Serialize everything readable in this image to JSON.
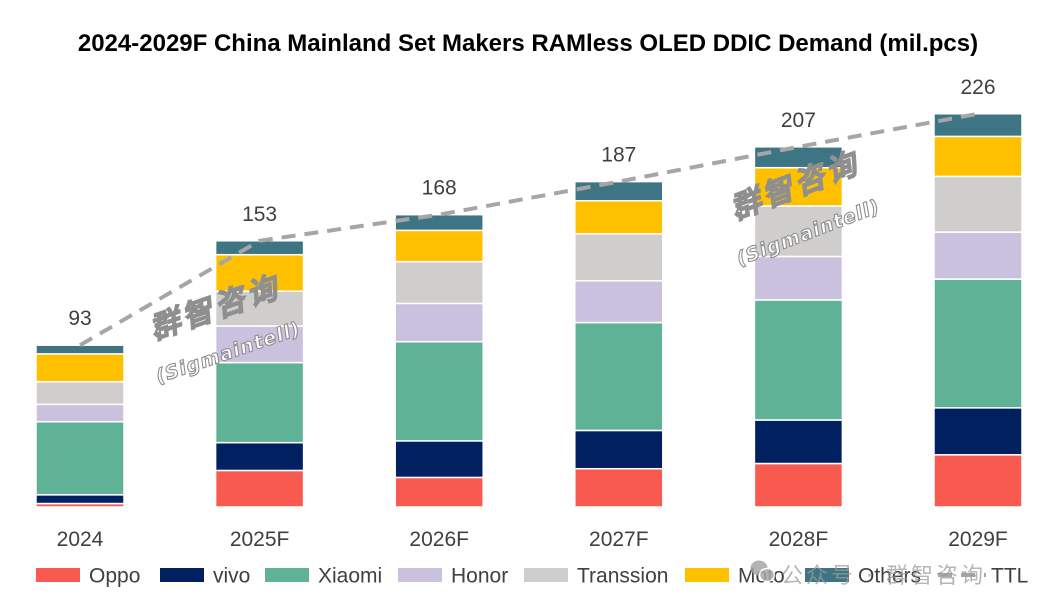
{
  "chart_data": {
    "type": "bar",
    "stacked": true,
    "title": "2024-2029F China Mainland Set Makers RAMless OLED DDIC Demand (mil.pcs)",
    "categories": [
      "2024",
      "2025F",
      "2026F",
      "2027F",
      "2028F",
      "2029F"
    ],
    "ylim": [
      0,
      250
    ],
    "grid": false,
    "y_axis_visible": false,
    "legend_position": "bottom",
    "series": [
      {
        "name": "Oppo",
        "color": "#F95A50",
        "values": [
          2,
          21,
          17,
          22,
          25,
          30
        ]
      },
      {
        "name": "vivo",
        "color": "#002060",
        "values": [
          5,
          16,
          21,
          22,
          25,
          27
        ]
      },
      {
        "name": "Xiaomi",
        "color": "#60B296",
        "values": [
          42,
          46,
          57,
          62,
          69,
          74
        ]
      },
      {
        "name": "Honor",
        "color": "#C9C1DE",
        "values": [
          10,
          21,
          22,
          24,
          25,
          27
        ]
      },
      {
        "name": "Transsion",
        "color": "#D0CECC",
        "values": [
          13,
          20,
          24,
          27,
          29,
          32
        ]
      },
      {
        "name": "Moto",
        "color": "#FFC000",
        "values": [
          16,
          21,
          18,
          19,
          22,
          23
        ]
      },
      {
        "name": "Others",
        "color": "#3E7585",
        "values": [
          5,
          8,
          9,
          11,
          12,
          13
        ]
      }
    ],
    "total_series": {
      "name": "TTL",
      "type": "line",
      "style": "dashed",
      "color": "#A6A6A6",
      "values": [
        93,
        153,
        168,
        187,
        207,
        226
      ]
    }
  },
  "watermarks": {
    "stamp_cn": "群智咨询",
    "stamp_en": "(Sigmaintell)",
    "wechat_label": "公众号 · 群智咨询"
  }
}
